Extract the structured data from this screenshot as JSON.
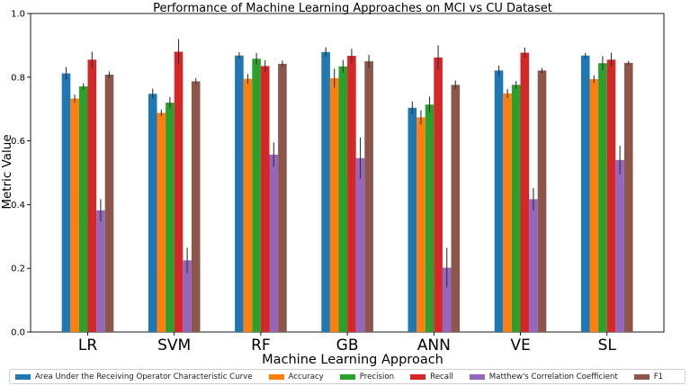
{
  "chart_data": {
    "type": "bar",
    "title": "Performance of Machine Learning Approaches on MCI vs CU Dataset",
    "xlabel": "Machine Learning Approach",
    "ylabel": "Metric Value",
    "ylim": [
      0.0,
      1.0
    ],
    "yticks": [
      "0.0",
      "0.2",
      "0.4",
      "0.6",
      "0.8",
      "1.0"
    ],
    "grid": false,
    "categories": [
      "LR",
      "SVM",
      "RF",
      "GB",
      "ANN",
      "VE",
      "SL"
    ],
    "series": [
      {
        "name": "Area Under the Receiving Operator Characteristic Curve",
        "color": "#1f77b4",
        "values": [
          0.812,
          0.748,
          0.868,
          0.879,
          0.704,
          0.821,
          0.868
        ],
        "errors": [
          0.02,
          0.016,
          0.01,
          0.015,
          0.02,
          0.016,
          0.008
        ]
      },
      {
        "name": "Accuracy",
        "color": "#ff7f0e",
        "values": [
          0.733,
          0.688,
          0.795,
          0.797,
          0.674,
          0.749,
          0.794
        ],
        "errors": [
          0.012,
          0.01,
          0.015,
          0.03,
          0.022,
          0.014,
          0.012
        ]
      },
      {
        "name": "Precision",
        "color": "#2ca02c",
        "values": [
          0.771,
          0.72,
          0.858,
          0.834,
          0.714,
          0.776,
          0.844
        ],
        "errors": [
          0.01,
          0.018,
          0.018,
          0.02,
          0.025,
          0.012,
          0.022
        ]
      },
      {
        "name": "Recall",
        "color": "#d62728",
        "values": [
          0.855,
          0.88,
          0.835,
          0.867,
          0.862,
          0.877,
          0.855
        ],
        "errors": [
          0.025,
          0.04,
          0.018,
          0.022,
          0.038,
          0.016,
          0.022
        ]
      },
      {
        "name": "Matthew's Correlation Coefficient",
        "color": "#9467bd",
        "values": [
          0.382,
          0.225,
          0.557,
          0.546,
          0.202,
          0.417,
          0.54
        ],
        "errors": [
          0.035,
          0.04,
          0.038,
          0.065,
          0.062,
          0.035,
          0.045
        ]
      },
      {
        "name": "F1",
        "color": "#8c564b",
        "values": [
          0.808,
          0.787,
          0.842,
          0.85,
          0.776,
          0.821,
          0.845
        ],
        "errors": [
          0.01,
          0.01,
          0.01,
          0.02,
          0.014,
          0.008,
          0.006
        ]
      }
    ],
    "legend_position": "bottom"
  }
}
